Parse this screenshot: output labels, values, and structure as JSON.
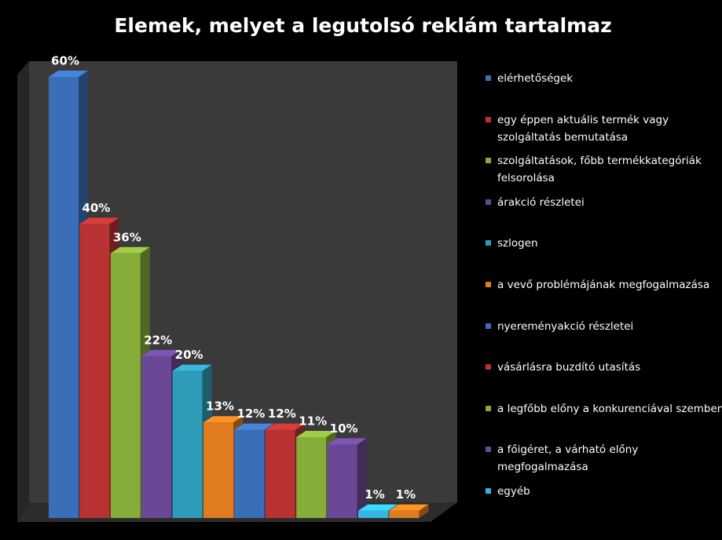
{
  "chart_data": {
    "type": "bar3d",
    "title": "Elemek, melyet a legutolsó reklám tartalmaz",
    "categories": [
      "elérhetőségek",
      "egy éppen aktuális termék vagy szolgáltatás bemutatása",
      "szolgáltatások, főbb termékkategóriák felsorolása",
      "árakció részletei",
      "szlogen",
      "a vevő problémájának megfogalmazása",
      "nyereményakció részletei",
      "vásárlásra buzdító utasítás",
      "a legfőbb előny a konkurenciával szemben",
      "a főigéret, a várható előny megfogalmazása",
      "egyéb",
      null
    ],
    "values": [
      60,
      40,
      36,
      22,
      20,
      13,
      12,
      12,
      11,
      10,
      1,
      1
    ],
    "value_labels": [
      "60%",
      "40%",
      "36%",
      "22%",
      "20%",
      "13%",
      "12%",
      "12%",
      "11%",
      "10%",
      "1%",
      "1%"
    ],
    "colors": [
      "#3a6fb8",
      "#b83232",
      "#86ac3a",
      "#6a4896",
      "#2e9bb8",
      "#e07b1f",
      "#3a6fb8",
      "#b83232",
      "#86ac3a",
      "#6a4896",
      "#33b5e0",
      "#e07b1f"
    ],
    "legend": "right"
  }
}
